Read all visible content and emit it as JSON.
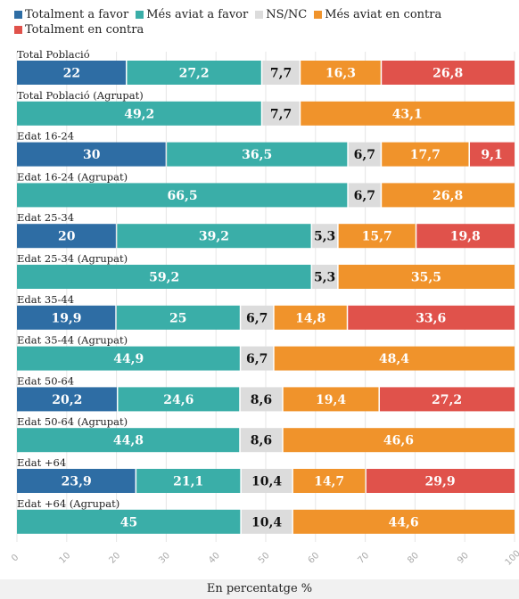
{
  "chart_data": {
    "type": "bar",
    "orientation": "horizontal",
    "stacked": true,
    "xlabel": "En percentatge %",
    "xlim": [
      0,
      100
    ],
    "xticks": [
      "0",
      "10",
      "20",
      "30",
      "40",
      "50",
      "60",
      "70",
      "80",
      "90",
      "100"
    ],
    "legend_position": "top",
    "legend": [
      {
        "name": "Totalment a favor",
        "color": "#2e6da4"
      },
      {
        "name": "Més aviat a favor",
        "color": "#3aaea8"
      },
      {
        "name": "NS/NC",
        "color": "#dcdcdc"
      },
      {
        "name": "Més aviat en contra",
        "color": "#f0932b"
      },
      {
        "name": "Totalment en contra",
        "color": "#e0524b"
      }
    ],
    "rows": [
      {
        "label": "Total Població",
        "segments": [
          {
            "value": 22,
            "text": "22",
            "color": "#2e6da4"
          },
          {
            "value": 27.2,
            "text": "27,2",
            "color": "#3aaea8"
          },
          {
            "value": 7.7,
            "text": "7,7",
            "color": "#dcdcdc"
          },
          {
            "value": 16.3,
            "text": "16,3",
            "color": "#f0932b"
          },
          {
            "value": 26.8,
            "text": "26,8",
            "color": "#e0524b"
          }
        ]
      },
      {
        "label": "Total Població (Agrupat)",
        "segments": [
          {
            "value": 49.2,
            "text": "49,2",
            "color": "#3aaea8"
          },
          {
            "value": 7.7,
            "text": "7,7",
            "color": "#dcdcdc"
          },
          {
            "value": 43.1,
            "text": "43,1",
            "color": "#f0932b"
          }
        ]
      },
      {
        "label": "Edat 16-24",
        "segments": [
          {
            "value": 30,
            "text": "30",
            "color": "#2e6da4"
          },
          {
            "value": 36.5,
            "text": "36,5",
            "color": "#3aaea8"
          },
          {
            "value": 6.7,
            "text": "6,7",
            "color": "#dcdcdc"
          },
          {
            "value": 17.7,
            "text": "17,7",
            "color": "#f0932b"
          },
          {
            "value": 9.1,
            "text": "9,1",
            "color": "#e0524b"
          }
        ]
      },
      {
        "label": "Edat 16-24 (Agrupat)",
        "segments": [
          {
            "value": 66.5,
            "text": "66,5",
            "color": "#3aaea8"
          },
          {
            "value": 6.7,
            "text": "6,7",
            "color": "#dcdcdc"
          },
          {
            "value": 26.8,
            "text": "26,8",
            "color": "#f0932b"
          }
        ]
      },
      {
        "label": "Edat 25-34",
        "segments": [
          {
            "value": 20,
            "text": "20",
            "color": "#2e6da4"
          },
          {
            "value": 39.2,
            "text": "39,2",
            "color": "#3aaea8"
          },
          {
            "value": 5.3,
            "text": "5,3",
            "color": "#dcdcdc"
          },
          {
            "value": 15.7,
            "text": "15,7",
            "color": "#f0932b"
          },
          {
            "value": 19.8,
            "text": "19,8",
            "color": "#e0524b"
          }
        ]
      },
      {
        "label": "Edat 25-34 (Agrupat)",
        "segments": [
          {
            "value": 59.2,
            "text": "59,2",
            "color": "#3aaea8"
          },
          {
            "value": 5.3,
            "text": "5,3",
            "color": "#dcdcdc"
          },
          {
            "value": 35.5,
            "text": "35,5",
            "color": "#f0932b"
          }
        ]
      },
      {
        "label": "Edat 35-44",
        "segments": [
          {
            "value": 19.9,
            "text": "19,9",
            "color": "#2e6da4"
          },
          {
            "value": 25,
            "text": "25",
            "color": "#3aaea8"
          },
          {
            "value": 6.7,
            "text": "6,7",
            "color": "#dcdcdc"
          },
          {
            "value": 14.8,
            "text": "14,8",
            "color": "#f0932b"
          },
          {
            "value": 33.6,
            "text": "33,6",
            "color": "#e0524b"
          }
        ]
      },
      {
        "label": "Edat 35-44 (Agrupat)",
        "segments": [
          {
            "value": 44.9,
            "text": "44,9",
            "color": "#3aaea8"
          },
          {
            "value": 6.7,
            "text": "6,7",
            "color": "#dcdcdc"
          },
          {
            "value": 48.4,
            "text": "48,4",
            "color": "#f0932b"
          }
        ]
      },
      {
        "label": "Edat 50-64",
        "segments": [
          {
            "value": 20.2,
            "text": "20,2",
            "color": "#2e6da4"
          },
          {
            "value": 24.6,
            "text": "24,6",
            "color": "#3aaea8"
          },
          {
            "value": 8.6,
            "text": "8,6",
            "color": "#dcdcdc"
          },
          {
            "value": 19.4,
            "text": "19,4",
            "color": "#f0932b"
          },
          {
            "value": 27.2,
            "text": "27,2",
            "color": "#e0524b"
          }
        ]
      },
      {
        "label": "Edat 50-64 (Agrupat)",
        "segments": [
          {
            "value": 44.8,
            "text": "44,8",
            "color": "#3aaea8"
          },
          {
            "value": 8.6,
            "text": "8,6",
            "color": "#dcdcdc"
          },
          {
            "value": 46.6,
            "text": "46,6",
            "color": "#f0932b"
          }
        ]
      },
      {
        "label": "Edat +64",
        "segments": [
          {
            "value": 23.9,
            "text": "23,9",
            "color": "#2e6da4"
          },
          {
            "value": 21.1,
            "text": "21,1",
            "color": "#3aaea8"
          },
          {
            "value": 10.4,
            "text": "10,4",
            "color": "#dcdcdc"
          },
          {
            "value": 14.7,
            "text": "14,7",
            "color": "#f0932b"
          },
          {
            "value": 29.9,
            "text": "29,9",
            "color": "#e0524b"
          }
        ]
      },
      {
        "label": "Edat +64 (Agrupat)",
        "segments": [
          {
            "value": 45,
            "text": "45",
            "color": "#3aaea8"
          },
          {
            "value": 10.4,
            "text": "10,4",
            "color": "#dcdcdc"
          },
          {
            "value": 44.6,
            "text": "44,6",
            "color": "#f0932b"
          }
        ]
      }
    ]
  }
}
